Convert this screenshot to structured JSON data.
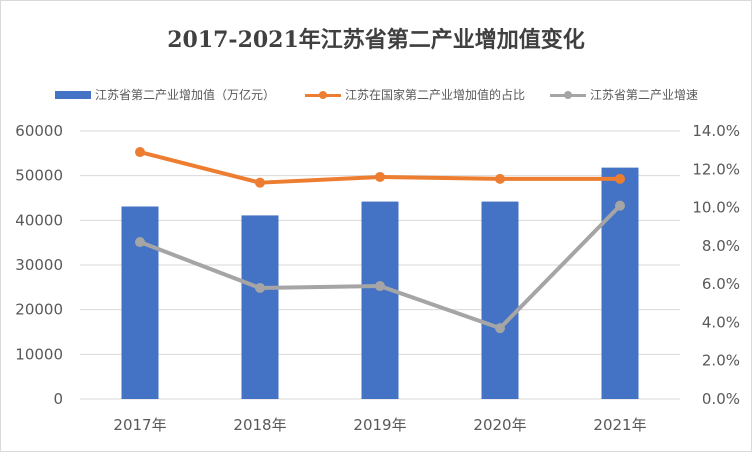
{
  "chart_data": {
    "type": "bar",
    "title": "2017-2021年江苏省第二产业增加值变化",
    "categories": [
      "2017年",
      "2018年",
      "2019年",
      "2020年",
      "2021年"
    ],
    "series": [
      {
        "name": "江苏省第二产业增加值（万亿元）",
        "type": "bar",
        "axis": "left",
        "color": "#4472c4",
        "values": [
          43100,
          41100,
          44200,
          44200,
          51800
        ]
      },
      {
        "name": "江苏在国家第二产业增加值的占比",
        "type": "line",
        "axis": "right",
        "color": "#ed7d31",
        "values": [
          12.9,
          11.3,
          11.6,
          11.5,
          11.5
        ]
      },
      {
        "name": "江苏省第二产业增速",
        "type": "line",
        "axis": "right",
        "color": "#a5a5a5",
        "values": [
          8.2,
          5.8,
          5.9,
          3.7,
          10.1
        ]
      }
    ],
    "y_left": {
      "range": [
        0,
        60000
      ],
      "ticks": [
        "0",
        "10000",
        "20000",
        "30000",
        "40000",
        "50000",
        "60000"
      ]
    },
    "y_right": {
      "range": [
        0,
        14
      ],
      "ticks": [
        "0.0%",
        "2.0%",
        "4.0%",
        "6.0%",
        "8.0%",
        "10.0%",
        "12.0%",
        "14.0%"
      ]
    },
    "grid": true,
    "legend_position": "top"
  }
}
